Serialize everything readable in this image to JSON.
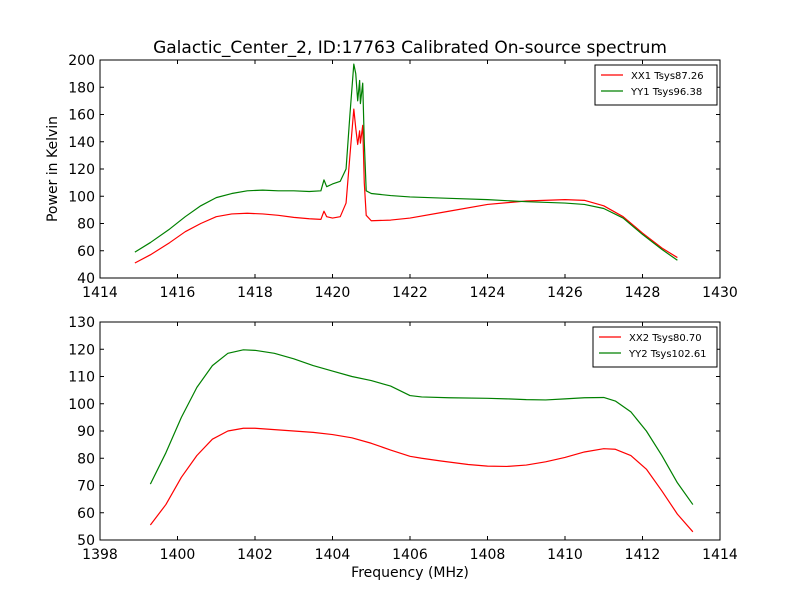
{
  "chart_data": [
    {
      "type": "line",
      "title": "Galactic_Center_2, ID:17763 Calibrated On-source spectrum",
      "xlabel": "",
      "ylabel": "Power in Kelvin",
      "xlim": [
        1414,
        1430
      ],
      "ylim": [
        40,
        200
      ],
      "xticks": [
        1414,
        1416,
        1418,
        1420,
        1422,
        1424,
        1426,
        1428,
        1430
      ],
      "yticks": [
        40,
        60,
        80,
        100,
        120,
        140,
        160,
        180,
        200
      ],
      "legend_position": "top-right",
      "series": [
        {
          "name": "XX1 Tsys87.26",
          "color": "#ff0000",
          "points": [
            [
              1414.9,
              51
            ],
            [
              1415.3,
              57
            ],
            [
              1415.8,
              66
            ],
            [
              1416.2,
              74
            ],
            [
              1416.6,
              80
            ],
            [
              1417.0,
              85
            ],
            [
              1417.4,
              87
            ],
            [
              1417.8,
              87.5
            ],
            [
              1418.2,
              87
            ],
            [
              1418.6,
              86
            ],
            [
              1419.0,
              84.5
            ],
            [
              1419.4,
              83.5
            ],
            [
              1419.7,
              83
            ],
            [
              1419.78,
              89
            ],
            [
              1419.85,
              85
            ],
            [
              1420.0,
              84
            ],
            [
              1420.2,
              85
            ],
            [
              1420.35,
              95
            ],
            [
              1420.45,
              130
            ],
            [
              1420.55,
              164
            ],
            [
              1420.6,
              150
            ],
            [
              1420.65,
              138
            ],
            [
              1420.7,
              148
            ],
            [
              1420.72,
              139
            ],
            [
              1420.78,
              152
            ],
            [
              1420.82,
              110
            ],
            [
              1420.87,
              86
            ],
            [
              1421.0,
              82
            ],
            [
              1421.5,
              82.5
            ],
            [
              1422.0,
              84
            ],
            [
              1423.0,
              89
            ],
            [
              1424.0,
              94
            ],
            [
              1425.0,
              96.5
            ],
            [
              1426.0,
              97.5
            ],
            [
              1426.5,
              97
            ],
            [
              1427.0,
              93
            ],
            [
              1427.5,
              85
            ],
            [
              1428.0,
              73
            ],
            [
              1428.5,
              62
            ],
            [
              1428.9,
              55
            ]
          ]
        },
        {
          "name": "YY1 Tsys96.38",
          "color": "#008000",
          "points": [
            [
              1414.9,
              59
            ],
            [
              1415.3,
              66
            ],
            [
              1415.8,
              76
            ],
            [
              1416.2,
              85
            ],
            [
              1416.6,
              93
            ],
            [
              1417.0,
              99
            ],
            [
              1417.4,
              102
            ],
            [
              1417.8,
              104
            ],
            [
              1418.2,
              104.5
            ],
            [
              1418.6,
              104
            ],
            [
              1419.0,
              104
            ],
            [
              1419.4,
              103.5
            ],
            [
              1419.7,
              104
            ],
            [
              1419.78,
              112
            ],
            [
              1419.85,
              107
            ],
            [
              1420.0,
              109
            ],
            [
              1420.2,
              111
            ],
            [
              1420.35,
              120
            ],
            [
              1420.45,
              160
            ],
            [
              1420.55,
              197
            ],
            [
              1420.6,
              190
            ],
            [
              1420.65,
              170
            ],
            [
              1420.7,
              185
            ],
            [
              1420.72,
              168
            ],
            [
              1420.78,
              183
            ],
            [
              1420.82,
              140
            ],
            [
              1420.87,
              104
            ],
            [
              1421.0,
              102
            ],
            [
              1421.5,
              100.5
            ],
            [
              1422.0,
              99.5
            ],
            [
              1423.0,
              98.5
            ],
            [
              1424.0,
              97.5
            ],
            [
              1425.0,
              96
            ],
            [
              1426.0,
              95
            ],
            [
              1426.5,
              94
            ],
            [
              1427.0,
              91
            ],
            [
              1427.5,
              84
            ],
            [
              1428.0,
              72
            ],
            [
              1428.5,
              61
            ],
            [
              1428.9,
              53
            ]
          ]
        }
      ]
    },
    {
      "type": "line",
      "title": "",
      "xlabel": "Frequency (MHz)",
      "ylabel": "",
      "xlim": [
        1398,
        1414
      ],
      "ylim": [
        50,
        130
      ],
      "xticks": [
        1398,
        1400,
        1402,
        1404,
        1406,
        1408,
        1410,
        1412,
        1414
      ],
      "yticks": [
        50,
        60,
        70,
        80,
        90,
        100,
        110,
        120,
        130
      ],
      "legend_position": "top-right",
      "series": [
        {
          "name": "XX2 Tsys80.70",
          "color": "#ff0000",
          "points": [
            [
              1399.3,
              55.5
            ],
            [
              1399.7,
              63
            ],
            [
              1400.1,
              73
            ],
            [
              1400.5,
              81
            ],
            [
              1400.9,
              87
            ],
            [
              1401.3,
              90
            ],
            [
              1401.7,
              91
            ],
            [
              1402.0,
              91
            ],
            [
              1402.5,
              90.5
            ],
            [
              1403.0,
              90
            ],
            [
              1403.5,
              89.5
            ],
            [
              1404.0,
              88.7
            ],
            [
              1404.5,
              87.5
            ],
            [
              1405.0,
              85.5
            ],
            [
              1405.5,
              83
            ],
            [
              1406.0,
              80.7
            ],
            [
              1406.3,
              80
            ],
            [
              1406.8,
              79
            ],
            [
              1407.5,
              77.7
            ],
            [
              1408.0,
              77.1
            ],
            [
              1408.5,
              77
            ],
            [
              1409.0,
              77.5
            ],
            [
              1409.5,
              78.7
            ],
            [
              1410.0,
              80.3
            ],
            [
              1410.5,
              82.3
            ],
            [
              1411.0,
              83.5
            ],
            [
              1411.3,
              83.3
            ],
            [
              1411.7,
              81
            ],
            [
              1412.1,
              76
            ],
            [
              1412.5,
              68
            ],
            [
              1412.9,
              59.5
            ],
            [
              1413.3,
              53
            ]
          ]
        },
        {
          "name": "YY2 Tsys102.61",
          "color": "#008000",
          "points": [
            [
              1399.3,
              70.5
            ],
            [
              1399.7,
              82
            ],
            [
              1400.1,
              95
            ],
            [
              1400.5,
              106
            ],
            [
              1400.9,
              114
            ],
            [
              1401.3,
              118.5
            ],
            [
              1401.7,
              119.8
            ],
            [
              1402.0,
              119.6
            ],
            [
              1402.5,
              118.5
            ],
            [
              1403.0,
              116.5
            ],
            [
              1403.5,
              114
            ],
            [
              1404.0,
              112
            ],
            [
              1404.5,
              110
            ],
            [
              1405.0,
              108.5
            ],
            [
              1405.5,
              106.5
            ],
            [
              1406.0,
              103
            ],
            [
              1406.3,
              102.5
            ],
            [
              1407.0,
              102.2
            ],
            [
              1408.0,
              102
            ],
            [
              1408.5,
              101.8
            ],
            [
              1409.0,
              101.5
            ],
            [
              1409.5,
              101.4
            ],
            [
              1410.0,
              101.8
            ],
            [
              1410.5,
              102.2
            ],
            [
              1411.0,
              102.3
            ],
            [
              1411.3,
              101
            ],
            [
              1411.7,
              97
            ],
            [
              1412.1,
              90
            ],
            [
              1412.5,
              81
            ],
            [
              1412.9,
              71
            ],
            [
              1413.3,
              63
            ]
          ]
        }
      ]
    }
  ]
}
